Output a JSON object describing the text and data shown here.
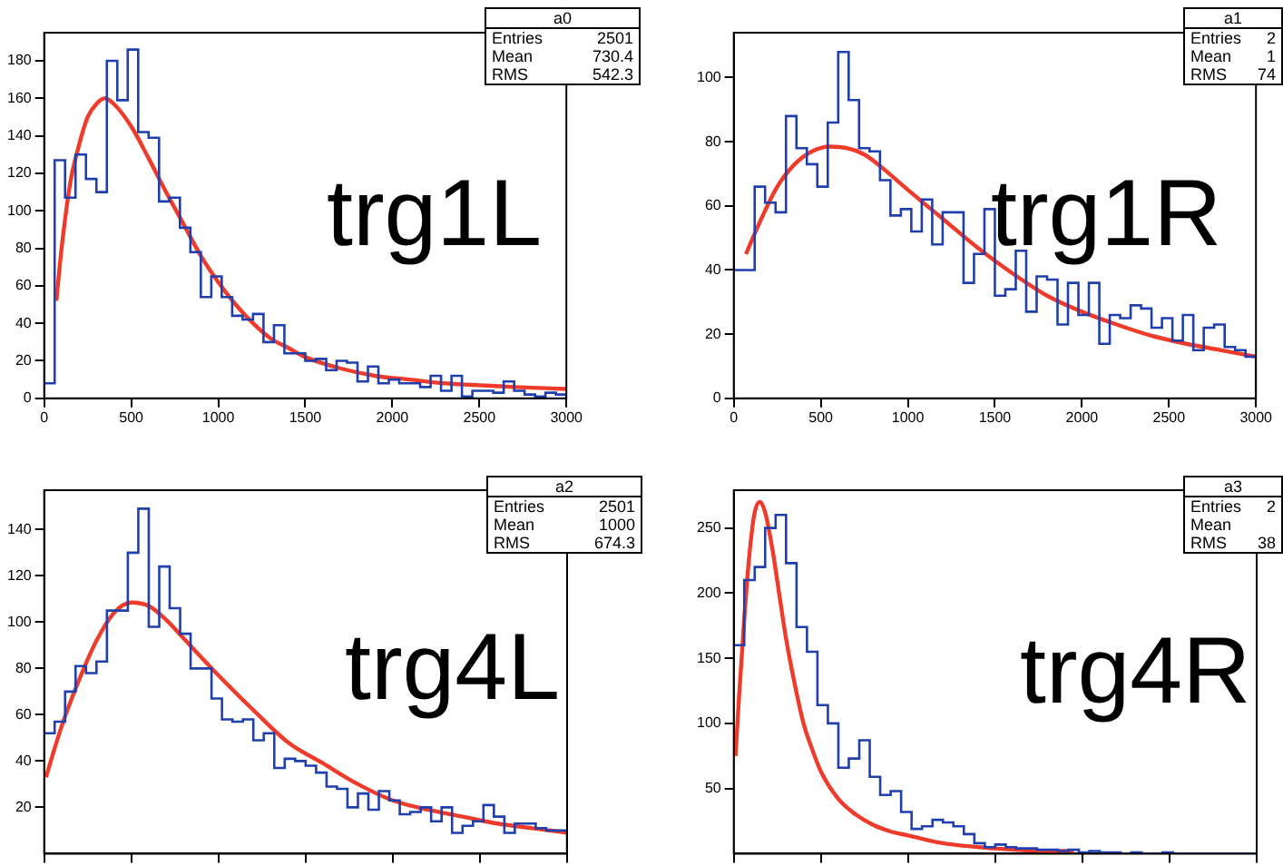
{
  "chart_data": [
    {
      "type": "histogram",
      "bins": [
        0,
        60,
        120,
        180,
        240,
        300,
        360,
        420,
        480,
        540,
        600,
        660,
        720,
        780,
        840,
        900,
        960,
        1020,
        1080,
        1140,
        1200,
        1260,
        1320,
        1380,
        1440,
        1500,
        1560,
        1620,
        1680,
        1740,
        1800,
        1860,
        1920,
        1980,
        2040,
        2100,
        2160,
        2220,
        2280,
        2340,
        2400,
        2460,
        2520,
        2580,
        2640,
        2700,
        2760,
        2820,
        2880,
        2940,
        3000
      ],
      "xlim": [
        0,
        3000
      ],
      "xticks": [
        0,
        500,
        1000,
        1500,
        2000,
        2500,
        3000
      ],
      "ylim": [
        0,
        195
      ],
      "yticks": [
        0,
        20,
        40,
        60,
        80,
        100,
        120,
        140,
        160,
        180
      ],
      "grid": false,
      "legend": false,
      "marker": "none",
      "annotations": [
        "trg1L",
        "a0",
        "Entries 2501",
        "Mean 730.4",
        "RMS 542.3"
      ],
      "series": [
        {
          "type": "histogram",
          "color": "#1f3fae",
          "values": [
            8,
            127,
            107,
            130,
            117,
            110,
            180,
            159,
            186,
            142,
            139,
            105,
            107,
            91,
            78,
            54,
            65,
            54,
            44,
            42,
            45,
            30,
            39,
            24,
            24,
            20,
            21,
            15,
            20,
            19,
            9,
            17,
            8,
            10,
            8,
            8,
            6,
            12,
            4,
            12,
            1,
            4,
            4,
            3,
            9,
            4,
            2,
            1,
            3,
            2
          ]
        },
        {
          "type": "line",
          "color": "#f03a2a",
          "x": [
            70,
            100,
            150,
            200,
            250,
            300,
            350,
            400,
            500,
            600,
            700,
            800,
            900,
            1000,
            1100,
            1200,
            1300,
            1400,
            1500,
            1700,
            1900,
            2100,
            2300,
            2500,
            2700,
            3000
          ],
          "values": [
            52,
            80,
            115,
            135,
            150,
            157,
            160,
            157,
            145,
            128,
            110,
            93,
            76,
            62,
            50,
            40,
            32,
            27,
            22,
            16,
            12,
            10,
            8,
            7,
            6,
            5
          ]
        }
      ]
    },
    {
      "type": "histogram",
      "bins": [
        0,
        60,
        120,
        180,
        240,
        300,
        360,
        420,
        480,
        540,
        600,
        660,
        720,
        780,
        840,
        900,
        960,
        1020,
        1080,
        1140,
        1200,
        1260,
        1320,
        1380,
        1440,
        1500,
        1560,
        1620,
        1680,
        1740,
        1800,
        1860,
        1920,
        1980,
        2040,
        2100,
        2160,
        2220,
        2280,
        2340,
        2400,
        2460,
        2520,
        2580,
        2640,
        2700,
        2760,
        2820,
        2880,
        2940,
        3000
      ],
      "xlim": [
        0,
        3000
      ],
      "xticks": [
        0,
        500,
        1000,
        1500,
        2000,
        2500,
        3000
      ],
      "ylim": [
        0,
        114
      ],
      "yticks": [
        0,
        20,
        40,
        60,
        80,
        100
      ],
      "grid": false,
      "legend": false,
      "marker": "none",
      "annotations": [
        "trg1R",
        "a1",
        "Entries 2",
        "Mean 1",
        "RMS 74"
      ],
      "series": [
        {
          "type": "histogram",
          "color": "#1f3fae",
          "values": [
            40,
            40,
            66,
            61,
            58,
            88,
            78,
            73,
            66,
            86,
            108,
            93,
            78,
            77,
            68,
            57,
            59,
            52,
            62,
            48,
            58,
            58,
            36,
            45,
            59,
            32,
            34,
            46,
            27,
            38,
            37,
            23,
            36,
            26,
            36,
            17,
            26,
            25,
            29,
            28,
            22,
            25,
            18,
            26,
            15,
            22,
            23,
            16,
            15,
            13
          ]
        },
        {
          "type": "line",
          "color": "#f03a2a",
          "x": [
            70,
            150,
            250,
            350,
            450,
            550,
            650,
            750,
            850,
            1000,
            1200,
            1400,
            1600,
            1800,
            2000,
            2200,
            2400,
            2600,
            2800,
            3000
          ],
          "values": [
            45,
            55,
            66,
            73,
            77,
            78.5,
            78,
            76,
            72,
            65,
            56,
            47,
            39,
            32,
            27,
            23,
            19.5,
            17,
            15,
            13
          ]
        }
      ]
    },
    {
      "type": "histogram",
      "bins": [
        0,
        60,
        120,
        180,
        240,
        300,
        360,
        420,
        480,
        540,
        600,
        660,
        720,
        780,
        840,
        900,
        960,
        1020,
        1080,
        1140,
        1200,
        1260,
        1320,
        1380,
        1440,
        1500,
        1560,
        1620,
        1680,
        1740,
        1800,
        1860,
        1920,
        1980,
        2040,
        2100,
        2160,
        2220,
        2280,
        2340,
        2400,
        2460,
        2520,
        2580,
        2640,
        2700,
        2760,
        2820,
        2880,
        2940,
        3000
      ],
      "xlim": [
        0,
        3000
      ],
      "xticks": [
        0,
        500,
        1000,
        1500,
        2000,
        2500,
        3000
      ],
      "tick_labels": "y",
      "ylim": [
        0,
        157
      ],
      "yticks": [
        20,
        40,
        60,
        80,
        100,
        120,
        140
      ],
      "grid": false,
      "legend": false,
      "marker": "none",
      "annotations": [
        "trg4L",
        "a2",
        "Entries 2501",
        "Mean 1000",
        "RMS 674.3"
      ],
      "series": [
        {
          "type": "histogram",
          "color": "#1f3fae",
          "values": [
            52,
            57,
            70,
            81,
            78,
            83,
            105,
            105,
            130,
            149,
            98,
            124,
            106,
            95,
            80,
            80,
            67,
            58,
            57,
            58,
            49,
            52,
            37,
            41,
            40,
            38,
            35,
            29,
            28,
            20,
            26,
            19,
            27,
            23,
            17,
            18,
            20,
            14,
            20,
            9,
            12,
            14,
            21,
            16,
            9,
            13,
            13,
            11,
            10,
            10
          ]
        },
        {
          "type": "line",
          "color": "#f03a2a",
          "x": [
            10,
            100,
            200,
            300,
            400,
            500,
            600,
            700,
            800,
            1000,
            1200,
            1400,
            1600,
            1800,
            2000,
            2200,
            2400,
            2600,
            2800,
            3000
          ],
          "values": [
            33,
            55,
            75,
            92,
            104,
            108.5,
            107,
            101,
            93,
            77,
            62,
            48,
            39,
            30,
            23,
            19,
            16,
            13,
            11,
            9
          ]
        }
      ]
    },
    {
      "type": "histogram",
      "bins": [
        0,
        60,
        120,
        180,
        240,
        300,
        360,
        420,
        480,
        540,
        600,
        660,
        720,
        780,
        840,
        900,
        960,
        1020,
        1080,
        1140,
        1200,
        1260,
        1320,
        1380,
        1440,
        1500,
        1560,
        1620,
        1680,
        1740,
        1800,
        1860,
        1920,
        1980,
        2040,
        2100,
        2160,
        2220,
        2280,
        2340,
        2400,
        2460,
        2520,
        2580,
        2640,
        2700,
        2760,
        2820,
        2880,
        2940,
        3000
      ],
      "xlim": [
        0,
        3000
      ],
      "xticks": [
        0,
        500,
        1000,
        1500,
        2000,
        2500,
        3000
      ],
      "tick_labels": "y",
      "ylim": [
        0,
        279
      ],
      "yticks": [
        50,
        100,
        150,
        200,
        250
      ],
      "grid": false,
      "legend": false,
      "marker": "none",
      "annotations": [
        "trg4R",
        "a3",
        "Entries 2",
        "Mean",
        "RMS 38"
      ],
      "series": [
        {
          "type": "histogram",
          "color": "#1f3fae",
          "values": [
            160,
            210,
            220,
            250,
            260,
            223,
            174,
            155,
            114,
            100,
            66,
            73,
            87,
            59,
            45,
            48,
            32,
            19,
            21,
            26,
            24,
            21,
            15,
            8,
            5,
            7,
            5,
            4,
            4,
            3,
            3,
            2,
            3,
            1,
            2,
            1,
            1,
            0,
            1,
            0,
            0,
            1,
            0,
            0,
            0,
            0,
            0,
            0,
            0,
            0
          ]
        },
        {
          "type": "line",
          "color": "#f03a2a",
          "x": [
            10,
            30,
            60,
            90,
            120,
            150,
            180,
            220,
            260,
            300,
            350,
            400,
            450,
            500,
            600,
            700,
            800,
            900,
            1000,
            1200,
            1500,
            1800,
            1950
          ],
          "values": [
            75,
            120,
            180,
            230,
            262,
            270,
            262,
            235,
            200,
            165,
            130,
            100,
            80,
            63,
            42,
            30,
            22,
            17,
            14,
            8,
            4,
            2,
            2
          ]
        }
      ]
    }
  ]
}
